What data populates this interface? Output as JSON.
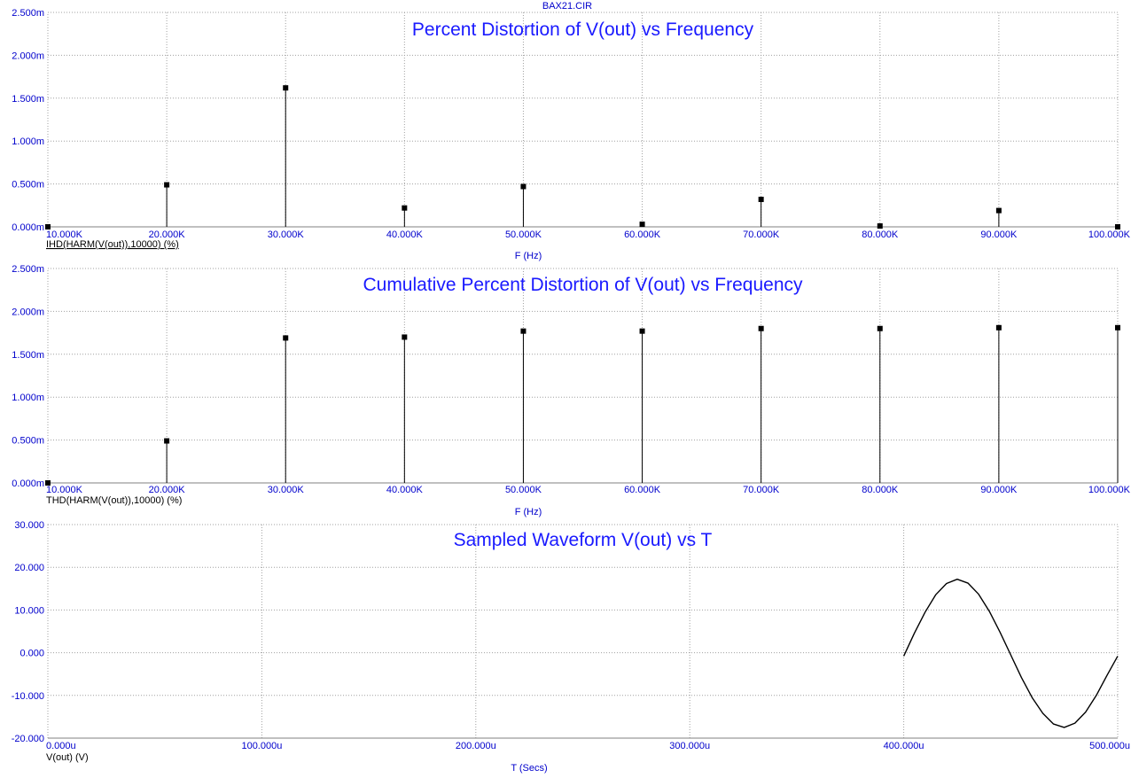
{
  "file_title": "BAX21.CIR",
  "colors": {
    "text": "#0000cc",
    "title": "#1a1aff",
    "data": "#000000",
    "grid": "#a0a0a0"
  },
  "chart_data": [
    {
      "type": "stem",
      "title": "Percent Distortion of V(out) vs Frequency",
      "xlabel": "F (Hz)",
      "ylabel": "",
      "trace_label": "IHD(HARM(V(out)),10000) (%)",
      "trace_underlined": true,
      "xlim": [
        10000,
        100000
      ],
      "ylim": [
        0,
        0.0025
      ],
      "x_ticks": [
        "10.000K",
        "20.000K",
        "30.000K",
        "40.000K",
        "50.000K",
        "60.000K",
        "70.000K",
        "80.000K",
        "90.000K",
        "100.000K"
      ],
      "y_ticks": [
        "0.000m",
        "0.500m",
        "1.000m",
        "1.500m",
        "2.000m",
        "2.500m"
      ],
      "grid": true,
      "x": [
        10000,
        20000,
        30000,
        40000,
        50000,
        60000,
        70000,
        80000,
        90000,
        100000
      ],
      "y": [
        0,
        0.00049,
        0.00162,
        0.00022,
        0.00047,
        3e-05,
        0.00032,
        1e-05,
        0.00019,
        0
      ]
    },
    {
      "type": "stem",
      "title": "Cumulative Percent Distortion of V(out) vs Frequency",
      "xlabel": "F (Hz)",
      "ylabel": "",
      "trace_label": "THD(HARM(V(out)),10000) (%)",
      "trace_underlined": false,
      "xlim": [
        10000,
        100000
      ],
      "ylim": [
        0,
        0.0025
      ],
      "x_ticks": [
        "10.000K",
        "20.000K",
        "30.000K",
        "40.000K",
        "50.000K",
        "60.000K",
        "70.000K",
        "80.000K",
        "90.000K",
        "100.000K"
      ],
      "y_ticks": [
        "0.000m",
        "0.500m",
        "1.000m",
        "1.500m",
        "2.000m",
        "2.500m"
      ],
      "grid": true,
      "x": [
        10000,
        20000,
        30000,
        40000,
        50000,
        60000,
        70000,
        80000,
        90000,
        100000
      ],
      "y": [
        0,
        0.00049,
        0.00169,
        0.0017,
        0.00177,
        0.00177,
        0.0018,
        0.0018,
        0.00181,
        0.00181
      ]
    },
    {
      "type": "line",
      "title": "Sampled Waveform  V(out) vs T",
      "xlabel": "T (Secs)",
      "ylabel": "",
      "trace_label": "V(out) (V)",
      "trace_underlined": false,
      "xlim": [
        0,
        0.0005
      ],
      "ylim": [
        -20,
        30
      ],
      "x_ticks": [
        "0.000u",
        "100.000u",
        "200.000u",
        "300.000u",
        "400.000u",
        "500.000u"
      ],
      "y_ticks": [
        "-20.000",
        "-10.000",
        "0.000",
        "10.000",
        "20.000",
        "30.000"
      ],
      "grid": true,
      "x": [
        0.0004,
        0.000405,
        0.00041,
        0.000415,
        0.00042,
        0.000425,
        0.00043,
        0.000435,
        0.00044,
        0.000445,
        0.00045,
        0.000455,
        0.00046,
        0.000465,
        0.00047,
        0.000475,
        0.00048,
        0.000485,
        0.00049,
        0.000495,
        0.0005
      ],
      "y": [
        -0.8,
        4.6,
        9.5,
        13.6,
        16.2,
        17.2,
        16.3,
        13.7,
        9.7,
        4.8,
        -0.5,
        -5.8,
        -10.5,
        -14.2,
        -16.7,
        -17.5,
        -16.5,
        -13.9,
        -10.0,
        -5.3,
        -0.8
      ]
    }
  ]
}
